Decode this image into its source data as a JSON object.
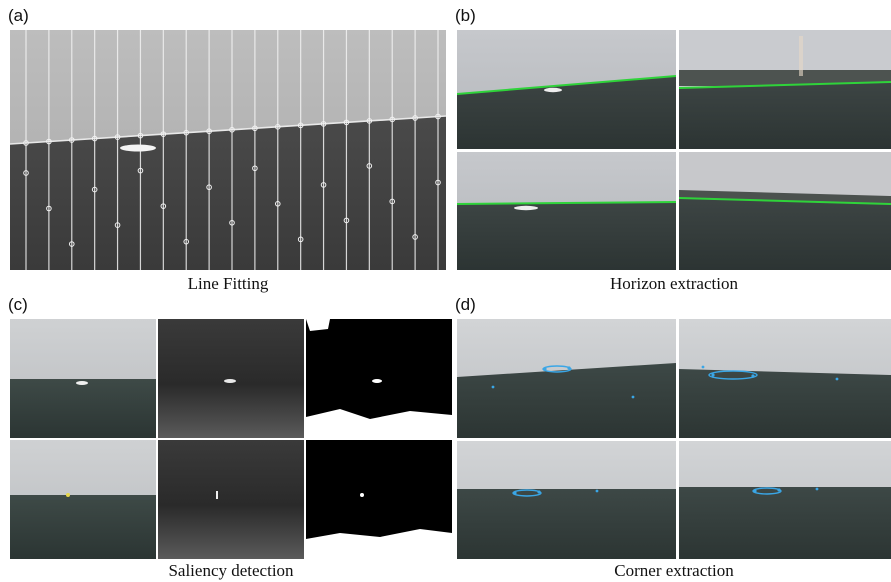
{
  "figure": {
    "panels": [
      {
        "label": "(a)",
        "caption": "Line Fitting"
      },
      {
        "label": "(b)",
        "caption": "Horizon extraction"
      },
      {
        "label": "(c)",
        "caption": "Saliency detection"
      },
      {
        "label": "(d)",
        "caption": "Corner extraction"
      }
    ]
  },
  "colors": {
    "horizon_line": "#2fd33a",
    "corner_marks": "#3aa6e6",
    "fit_lines": "#f2f2f2"
  }
}
